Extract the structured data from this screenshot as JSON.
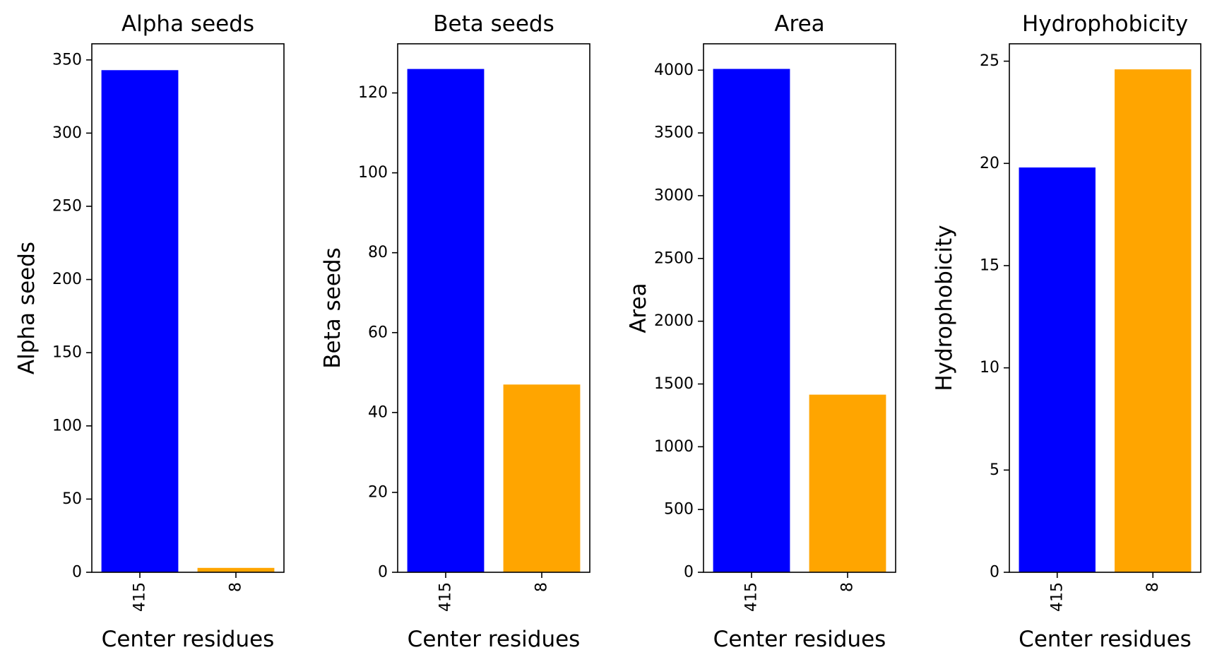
{
  "chart_data": [
    {
      "type": "bar",
      "title": "Alpha seeds",
      "xlabel": "Center residues",
      "ylabel": "Alpha seeds",
      "categories": [
        "415",
        "8"
      ],
      "values": [
        343,
        3
      ],
      "ylim": [
        0,
        361
      ],
      "yticks": [
        "0",
        "50",
        "100",
        "150",
        "200",
        "250",
        "300",
        "350"
      ],
      "colors": [
        "#0000ff",
        "#ffa500"
      ],
      "grid": false
    },
    {
      "type": "bar",
      "title": "Beta seeds",
      "xlabel": "Center residues",
      "ylabel": "Beta seeds",
      "categories": [
        "415",
        "8"
      ],
      "values": [
        126,
        47
      ],
      "ylim": [
        0,
        132.3
      ],
      "yticks": [
        "0",
        "20",
        "40",
        "60",
        "80",
        "100",
        "120"
      ],
      "colors": [
        "#0000ff",
        "#ffa500"
      ],
      "grid": false
    },
    {
      "type": "bar",
      "title": "Area",
      "xlabel": "Center residues",
      "ylabel": "Area",
      "categories": [
        "415",
        "8"
      ],
      "values": [
        4010,
        1415
      ],
      "ylim": [
        0,
        4210
      ],
      "yticks": [
        "0",
        "500",
        "1000",
        "1500",
        "2000",
        "2500",
        "3000",
        "3500",
        "4000"
      ],
      "colors": [
        "#0000ff",
        "#ffa500"
      ],
      "grid": false
    },
    {
      "type": "bar",
      "title": "Hydrophobicity",
      "xlabel": "Center residues",
      "ylabel": "Hydrophobicity",
      "categories": [
        "415",
        "8"
      ],
      "values": [
        19.8,
        24.6
      ],
      "ylim": [
        0,
        25.85
      ],
      "yticks": [
        "0",
        "5",
        "10",
        "15",
        "20",
        "25"
      ],
      "colors": [
        "#0000ff",
        "#ffa500"
      ],
      "grid": false
    }
  ]
}
